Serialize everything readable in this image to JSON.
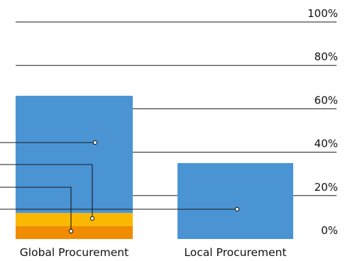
{
  "chart_data": {
    "type": "bar",
    "stacked": true,
    "categories": [
      "Global Procurement",
      "Local Procurement"
    ],
    "ylim": [
      0,
      100
    ],
    "y_ticks": [
      "0%",
      "20%",
      "40%",
      "60%",
      "80%",
      "100%"
    ],
    "y_tick_values": [
      0,
      20,
      40,
      60,
      80,
      100
    ],
    "grid": true,
    "legend": "none",
    "series": [
      {
        "values": [
          6,
          0
        ],
        "color": "#f08c00"
      },
      {
        "values": [
          6,
          0
        ],
        "color": "#fbb800"
      },
      {
        "values": [
          54,
          35
        ],
        "color": "#4a94d4"
      }
    ]
  }
}
